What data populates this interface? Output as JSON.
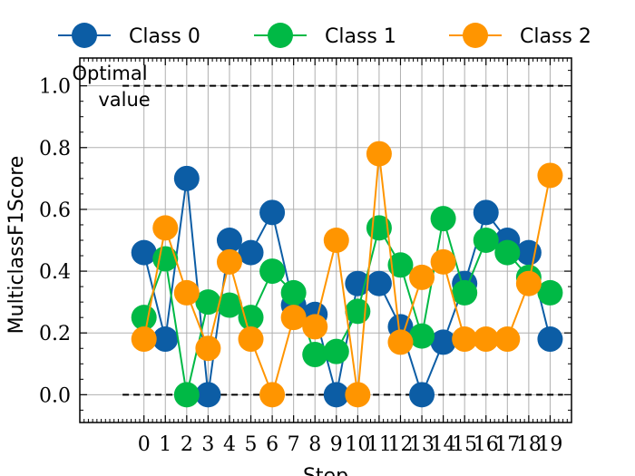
{
  "chart_data": {
    "type": "line",
    "xlabel": "Step",
    "ylabel": "MulticlassF1Score",
    "x": [
      0,
      1,
      2,
      3,
      4,
      5,
      6,
      7,
      8,
      9,
      10,
      11,
      12,
      13,
      14,
      15,
      16,
      17,
      18,
      19
    ],
    "x_tick_labels": [
      "0",
      "1",
      "2",
      "3",
      "4",
      "5",
      "6",
      "7",
      "8",
      "9",
      "10",
      "11",
      "12",
      "13",
      "14",
      "15",
      "16",
      "17",
      "18",
      "19"
    ],
    "y_ticks": [
      0.0,
      0.2,
      0.4,
      0.6,
      0.8,
      1.0
    ],
    "y_tick_labels": [
      "0.0",
      "0.2",
      "0.4",
      "0.6",
      "0.8",
      "1.0"
    ],
    "xlim": [
      -3.0,
      20.0
    ],
    "ylim": [
      -0.09,
      1.09
    ],
    "grid": true,
    "legend_position": "top, above plot",
    "series": [
      {
        "name": "Class 0",
        "color": "#0C5DA5",
        "values": [
          0.46,
          0.18,
          0.7,
          0.0,
          0.5,
          0.46,
          0.59,
          0.29,
          0.26,
          0.0,
          0.36,
          0.36,
          0.22,
          0.0,
          0.17,
          0.36,
          0.59,
          0.5,
          0.46,
          0.18
        ]
      },
      {
        "name": "Class 1",
        "color": "#00B945",
        "values": [
          0.25,
          0.44,
          0.0,
          0.3,
          0.29,
          0.25,
          0.4,
          0.33,
          0.13,
          0.14,
          0.27,
          0.54,
          0.42,
          0.19,
          0.57,
          0.33,
          0.5,
          0.46,
          0.38,
          0.33
        ]
      },
      {
        "name": "Class 2",
        "color": "#FF9500",
        "values": [
          0.18,
          0.54,
          0.33,
          0.15,
          0.43,
          0.18,
          0.0,
          0.25,
          0.22,
          0.5,
          0.0,
          0.78,
          0.17,
          0.38,
          0.43,
          0.18,
          0.18,
          0.18,
          0.36,
          0.71
        ]
      }
    ],
    "reference_lines": [
      {
        "y": 1.0,
        "style": "dashed",
        "color": "#000000",
        "label_lines": [
          "Optimal",
          "value"
        ]
      },
      {
        "y": 0.0,
        "style": "dashed",
        "color": "#000000"
      }
    ]
  }
}
